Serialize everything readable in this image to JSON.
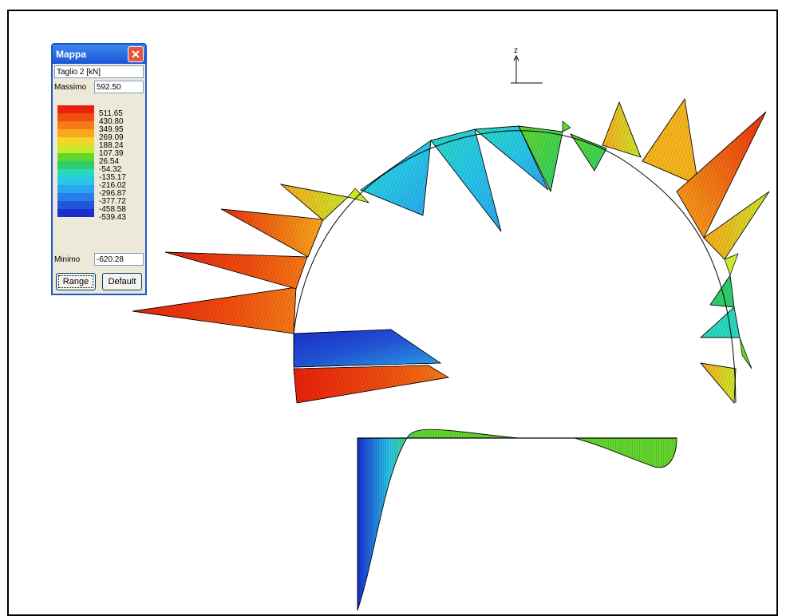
{
  "window": {
    "title": "Mappa",
    "close_icon": "close-icon",
    "quantity": "Taglio 2 [kN]",
    "max_label": "Massimo",
    "max_value": "592.50",
    "min_label": "Minimo",
    "min_value": "-620.28",
    "range_button": "Range",
    "default_button": "Default"
  },
  "legend": [
    {
      "value": "511.65",
      "color": "#e8200c"
    },
    {
      "value": "430.80",
      "color": "#f04e10"
    },
    {
      "value": "349.95",
      "color": "#f67a16"
    },
    {
      "value": "269.09",
      "color": "#f9a81c"
    },
    {
      "value": "188.24",
      "color": "#f2d628"
    },
    {
      "value": "107.39",
      "color": "#c8e82a"
    },
    {
      "value": "26.54",
      "color": "#62d62c"
    },
    {
      "value": "-54.32",
      "color": "#2ecf6a"
    },
    {
      "value": "-135.17",
      "color": "#2ad8c0"
    },
    {
      "value": "-216.02",
      "color": "#28c6e8"
    },
    {
      "value": "-296.87",
      "color": "#2aa6ee"
    },
    {
      "value": "-377.72",
      "color": "#287ee8"
    },
    {
      "value": "-458.58",
      "color": "#2256d8"
    },
    {
      "value": "-539.43",
      "color": "#1a2ed0"
    }
  ],
  "axis": {
    "z_label": "z"
  },
  "colors": {
    "stroke": "#000000",
    "background": "#ffffff"
  }
}
